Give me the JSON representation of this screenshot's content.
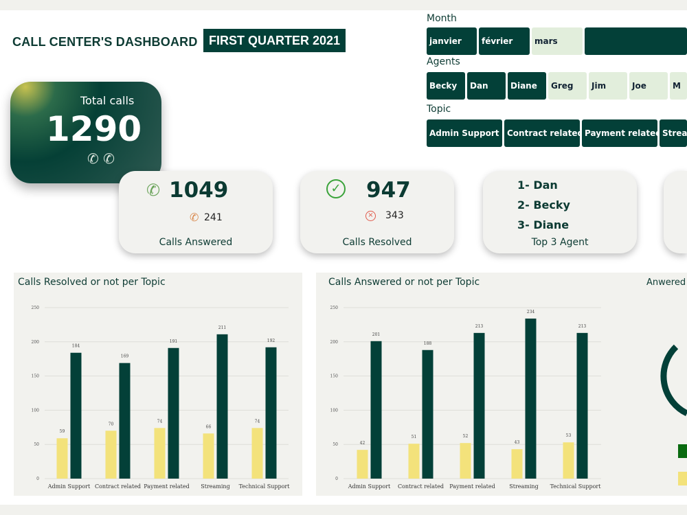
{
  "header": {
    "title": "CALL CENTER'S DASHBOARD",
    "subtitle": "FIRST QUARTER 2021"
  },
  "total": {
    "label": "Total calls",
    "value": "1290",
    "icons": [
      "missed-call-icon",
      "incoming-call-icon"
    ]
  },
  "cards": {
    "answered": {
      "value": "1049",
      "secondary": "241",
      "caption": "Calls Answered"
    },
    "resolved": {
      "value": "947",
      "secondary": "343",
      "caption": "Calls Resolved"
    },
    "top_agents": {
      "items": [
        "1- Dan",
        "2- Becky",
        "3- Diane"
      ],
      "caption": "Top 3 Agent"
    }
  },
  "slicers": {
    "month": {
      "label": "Month",
      "items": [
        {
          "label": "janvier",
          "selected": true
        },
        {
          "label": "février",
          "selected": true
        },
        {
          "label": "mars",
          "selected": false
        },
        {
          "label": "",
          "selected": true
        }
      ]
    },
    "agents": {
      "label": "Agents",
      "items": [
        {
          "label": "Becky",
          "selected": true
        },
        {
          "label": "Dan",
          "selected": true
        },
        {
          "label": "Diane",
          "selected": true
        },
        {
          "label": "Greg",
          "selected": false
        },
        {
          "label": "Jim",
          "selected": false
        },
        {
          "label": "Joe",
          "selected": false
        },
        {
          "label": "M",
          "selected": false
        }
      ]
    },
    "topic": {
      "label": "Topic",
      "items": [
        {
          "label": "Admin Support",
          "selected": true
        },
        {
          "label": "Contract related",
          "selected": true
        },
        {
          "label": "Payment related",
          "selected": true
        },
        {
          "label": "Stream",
          "selected": true
        }
      ]
    }
  },
  "colors": {
    "dark": "#034038",
    "yellow": "#f3e27b",
    "legend_green": "#0a6b10"
  },
  "donut": {
    "title": "Anwered"
  },
  "chart_data": [
    {
      "type": "bar",
      "title": "Calls Resolved or not per Topic",
      "categories": [
        "Admin Support",
        "Contract related",
        "Payment related",
        "Streaming",
        "Technical Support"
      ],
      "series": [
        {
          "values": [
            59,
            70,
            74,
            66,
            74
          ],
          "color": "#f3e27b"
        },
        {
          "values": [
            184,
            169,
            191,
            211,
            192
          ],
          "color": "#034038"
        }
      ],
      "ylim": [
        0,
        250
      ],
      "yticks": [
        0,
        50,
        100,
        150,
        200,
        250
      ],
      "grid": true
    },
    {
      "type": "bar",
      "title": "Calls Answered or not per Topic",
      "categories": [
        "Admin Support",
        "Contract related",
        "Payment related",
        "Streaming",
        "Technical Support"
      ],
      "series": [
        {
          "values": [
            42,
            51,
            52,
            43,
            53
          ],
          "color": "#f3e27b"
        },
        {
          "values": [
            201,
            188,
            213,
            234,
            213
          ],
          "color": "#034038"
        }
      ],
      "ylim": [
        0,
        250
      ],
      "yticks": [
        0,
        50,
        100,
        150,
        200,
        250
      ],
      "grid": true
    }
  ]
}
